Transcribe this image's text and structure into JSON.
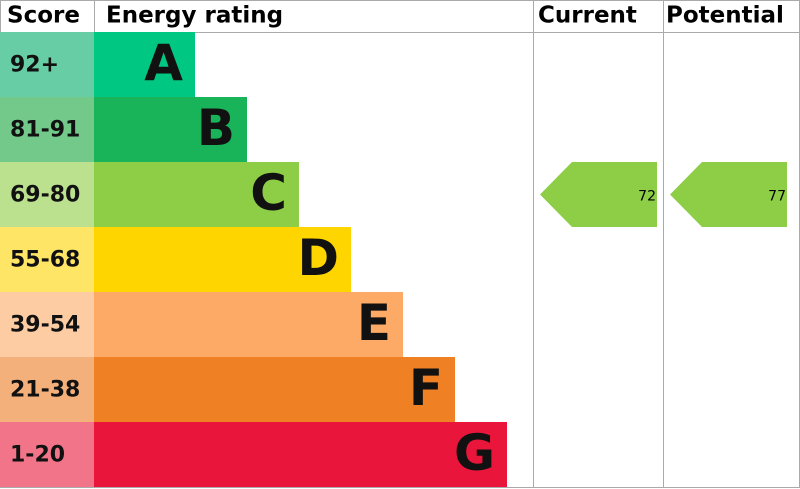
{
  "header": {
    "score": "Score",
    "rating": "Energy rating",
    "current": "Current",
    "potential": "Potential"
  },
  "bands": [
    {
      "score": "92+",
      "rating": "A",
      "color": "#00c781",
      "score_color": "#66cda4"
    },
    {
      "score": "81-91",
      "rating": "B",
      "color": "#19b459",
      "score_color": "#73c98a"
    },
    {
      "score": "69-80",
      "rating": "C",
      "color": "#8dce46",
      "score_color": "#bbe18f"
    },
    {
      "score": "55-68",
      "rating": "D",
      "color": "#ffd500",
      "score_color": "#ffe566"
    },
    {
      "score": "39-54",
      "rating": "E",
      "color": "#fcaa65",
      "score_color": "#fdcca2"
    },
    {
      "score": "21-38",
      "rating": "F",
      "color": "#ef8023",
      "score_color": "#f4b07a"
    },
    {
      "score": "1-20",
      "rating": "G",
      "color": "#e9153b",
      "score_color": "#f27489"
    }
  ],
  "current": {
    "value": 72,
    "color": "#8dce46"
  },
  "potential": {
    "value": 77,
    "color": "#8dce46"
  }
}
